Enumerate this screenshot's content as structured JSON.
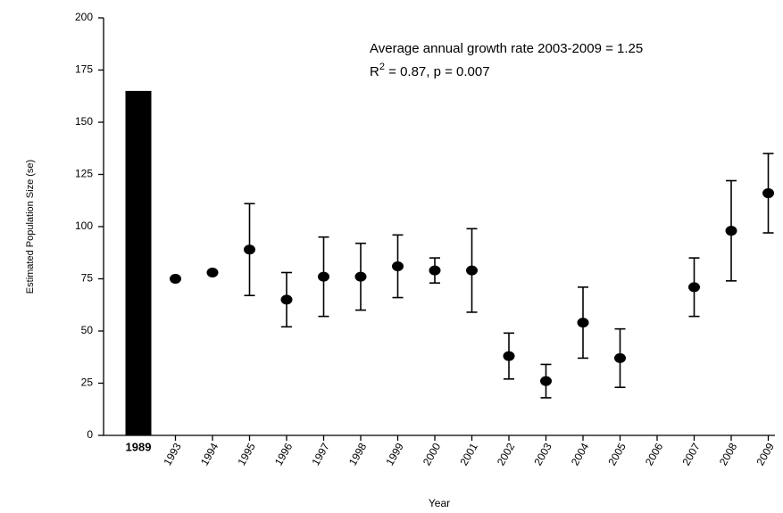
{
  "chart_data": {
    "type": "combo",
    "x_label": "Year",
    "y_label": "Estimated Population Size (se)",
    "annotations": [
      {
        "text": "Average annual growth rate 2003-2009 = 1.25"
      },
      {
        "parts": [
          "R",
          "2",
          " = 0.87, p = 0.007"
        ]
      }
    ],
    "categories": [
      "1989",
      "1993",
      "1994",
      "1995",
      "1996",
      "1997",
      "1998",
      "1999",
      "2000",
      "2001",
      "2002",
      "2003",
      "2004",
      "2005",
      "2006",
      "2007",
      "2008",
      "2009"
    ],
    "series": [
      {
        "type": "bar",
        "color": "#000000",
        "values": [
          165,
          null,
          null,
          null,
          null,
          null,
          null,
          null,
          null,
          null,
          null,
          null,
          null,
          null,
          null,
          null,
          null,
          null
        ]
      },
      {
        "type": "scatter",
        "color": "#000000",
        "values": [
          null,
          75,
          78,
          89,
          65,
          76,
          76,
          81,
          79,
          79,
          38,
          26,
          54,
          37,
          null,
          71,
          98,
          116
        ],
        "errors": [
          null,
          null,
          null,
          22,
          13,
          19,
          16,
          15,
          6,
          20,
          11,
          8,
          17,
          14,
          null,
          14,
          24,
          19
        ]
      }
    ],
    "ylim": [
      0,
      200
    ],
    "yticks": [
      0,
      25,
      50,
      75,
      100,
      125,
      150,
      175,
      200
    ],
    "grid": false
  }
}
